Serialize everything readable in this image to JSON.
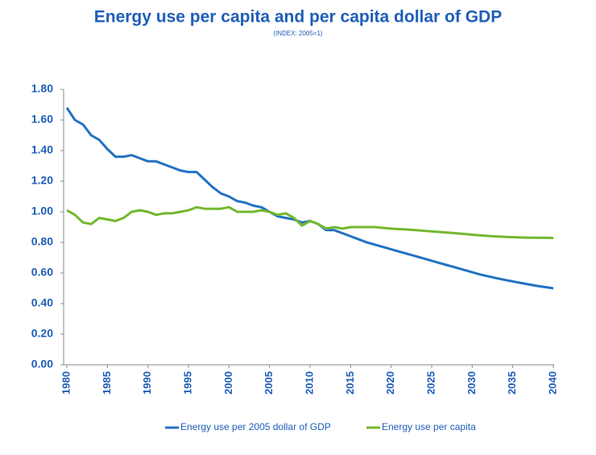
{
  "chart_data": {
    "type": "line",
    "title": "Energy use per capita and per capita dollar of GDP",
    "subtitle": "(INDEX: 2005=1)",
    "x": [
      1980,
      1981,
      1982,
      1983,
      1984,
      1985,
      1986,
      1987,
      1988,
      1989,
      1990,
      1991,
      1992,
      1993,
      1994,
      1995,
      1996,
      1997,
      1998,
      1999,
      2000,
      2001,
      2002,
      2003,
      2004,
      2005,
      2006,
      2007,
      2008,
      2009,
      2010,
      2011,
      2012,
      2013,
      2014,
      2015,
      2016,
      2017,
      2018,
      2019,
      2020,
      2021,
      2022,
      2023,
      2024,
      2025,
      2026,
      2027,
      2028,
      2029,
      2030,
      2031,
      2032,
      2033,
      2034,
      2035,
      2036,
      2037,
      2038,
      2039,
      2040
    ],
    "series": [
      {
        "name": "Energy use per 2005 dollar of GDP",
        "color": "#2272c3",
        "values": [
          1.68,
          1.6,
          1.57,
          1.5,
          1.47,
          1.41,
          1.36,
          1.36,
          1.37,
          1.35,
          1.33,
          1.33,
          1.31,
          1.29,
          1.27,
          1.26,
          1.26,
          1.21,
          1.16,
          1.12,
          1.1,
          1.07,
          1.06,
          1.04,
          1.03,
          1.0,
          0.97,
          0.96,
          0.95,
          0.93,
          0.94,
          0.92,
          0.88,
          0.88,
          0.86,
          0.84,
          0.82,
          0.8,
          0.785,
          0.77,
          0.755,
          0.74,
          0.725,
          0.71,
          0.695,
          0.68,
          0.665,
          0.65,
          0.635,
          0.62,
          0.605,
          0.59,
          0.578,
          0.566,
          0.555,
          0.545,
          0.535,
          0.525,
          0.516,
          0.508,
          0.5
        ]
      },
      {
        "name": "Energy use per capita",
        "color": "#72b82e",
        "values": [
          1.01,
          0.98,
          0.93,
          0.92,
          0.96,
          0.95,
          0.94,
          0.96,
          1.0,
          1.01,
          1.0,
          0.98,
          0.99,
          0.99,
          1.0,
          1.01,
          1.03,
          1.02,
          1.02,
          1.02,
          1.03,
          1.0,
          1.0,
          1.0,
          1.01,
          1.0,
          0.98,
          0.99,
          0.96,
          0.91,
          0.94,
          0.92,
          0.89,
          0.9,
          0.89,
          0.9,
          0.9,
          0.9,
          0.9,
          0.895,
          0.89,
          0.887,
          0.884,
          0.88,
          0.876,
          0.872,
          0.868,
          0.864,
          0.86,
          0.855,
          0.85,
          0.846,
          0.842,
          0.839,
          0.836,
          0.834,
          0.832,
          0.831,
          0.83,
          0.83,
          0.829
        ]
      }
    ],
    "xlim": [
      1980,
      2040
    ],
    "xticks": [
      1980,
      1985,
      1990,
      1995,
      2000,
      2005,
      2010,
      2015,
      2020,
      2025,
      2030,
      2035,
      2040
    ],
    "ylim": [
      0,
      1.8
    ],
    "yticks": [
      {
        "value": 0,
        "label": "0.00"
      },
      {
        "value": 0.2,
        "label": "0.20"
      },
      {
        "value": 0.4,
        "label": "0.40"
      },
      {
        "value": 0.6,
        "label": "0.60"
      },
      {
        "value": 0.8,
        "label": "0.80"
      },
      {
        "value": 1.0,
        "label": "1.00"
      },
      {
        "value": 1.2,
        "label": "1.20"
      },
      {
        "value": 1.4,
        "label": "1.40"
      },
      {
        "value": 1.6,
        "label": "1.60"
      },
      {
        "value": 1.8,
        "label": "1.80"
      }
    ],
    "legend": "bottom"
  }
}
